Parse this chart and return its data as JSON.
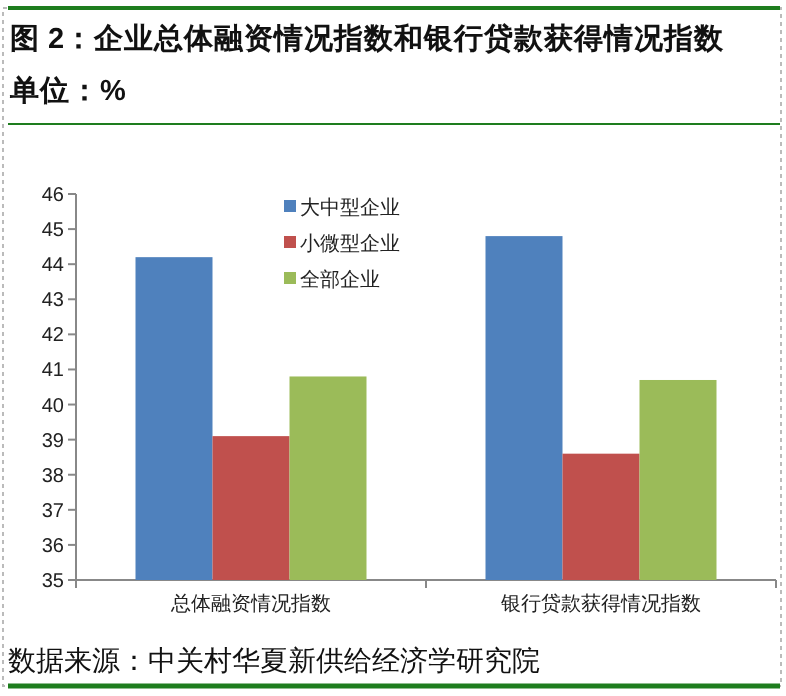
{
  "chart_data": {
    "type": "bar",
    "title": "图 2：企业总体融资情况指数和银行贷款获得情况指数",
    "subtitle": "单位：%",
    "categories": [
      "总体融资情况指数",
      "银行贷款获得情况指数"
    ],
    "series": [
      {
        "name": "大中型企业",
        "color": "#4f81bd",
        "values": [
          44.2,
          44.8
        ]
      },
      {
        "name": "小微型企业",
        "color": "#c0504d",
        "values": [
          39.1,
          38.6
        ]
      },
      {
        "name": "全部企业",
        "color": "#9bbb59",
        "values": [
          40.8,
          40.7
        ]
      }
    ],
    "ylim": [
      35,
      46
    ],
    "yticks": [
      35,
      36,
      37,
      38,
      39,
      40,
      41,
      42,
      43,
      44,
      45,
      46
    ],
    "grid": false,
    "legend": "top",
    "annotations": [
      "数据来源：中关村华夏新供给经济学研究院"
    ]
  }
}
